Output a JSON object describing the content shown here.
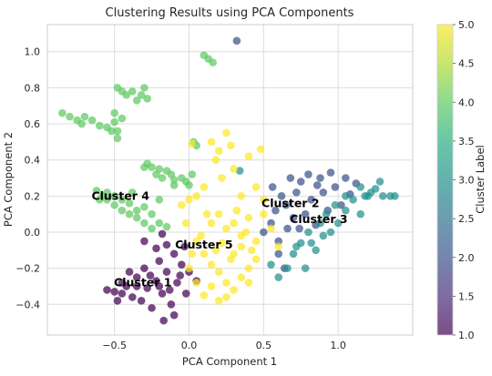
{
  "chart_data": {
    "type": "scatter",
    "title": "Clustering Results using PCA Components",
    "xlabel": "PCA Component 1",
    "ylabel": "PCA Component 2",
    "xlim": [
      -0.95,
      1.5
    ],
    "ylim": [
      -0.57,
      1.15
    ],
    "xticks": [
      "−0.5",
      "0.0",
      "0.5",
      "1.0"
    ],
    "xtick_values": [
      -0.5,
      0.0,
      0.5,
      1.0
    ],
    "yticks": [
      "−0.4",
      "−0.2",
      "0.0",
      "0.2",
      "0.4",
      "0.6",
      "0.8",
      "1.0"
    ],
    "ytick_values": [
      -0.4,
      -0.2,
      0.0,
      0.2,
      0.4,
      0.6,
      0.8,
      1.0
    ],
    "grid": true,
    "colormap": "viridis",
    "colorbar": {
      "label": "Cluster Label",
      "range": [
        1.0,
        5.0
      ],
      "ticks": [
        "1.0",
        "1.5",
        "2.0",
        "2.5",
        "3.0",
        "3.5",
        "4.0",
        "4.5",
        "5.0"
      ],
      "tick_values": [
        1.0,
        1.5,
        2.0,
        2.5,
        3.0,
        3.5,
        4.0,
        4.5,
        5.0
      ]
    },
    "clusters": [
      {
        "label": 1,
        "text": "Cluster 1",
        "color": "#440154",
        "center": [
          -0.31,
          -0.28
        ],
        "points": [
          [
            -0.55,
            -0.32
          ],
          [
            -0.5,
            -0.33
          ],
          [
            -0.45,
            -0.34
          ],
          [
            -0.42,
            -0.3
          ],
          [
            -0.38,
            -0.36
          ],
          [
            -0.35,
            -0.25
          ],
          [
            -0.32,
            -0.38
          ],
          [
            -0.3,
            -0.2
          ],
          [
            -0.28,
            -0.31
          ],
          [
            -0.25,
            -0.42
          ],
          [
            -0.22,
            -0.27
          ],
          [
            -0.2,
            -0.16
          ],
          [
            -0.18,
            -0.34
          ],
          [
            -0.15,
            -0.22
          ],
          [
            -0.12,
            -0.4
          ],
          [
            -0.1,
            -0.12
          ],
          [
            -0.08,
            -0.28
          ],
          [
            -0.05,
            -0.18
          ],
          [
            -0.03,
            -0.08
          ],
          [
            -0.02,
            -0.34
          ],
          [
            -0.1,
            -0.46
          ],
          [
            -0.17,
            -0.49
          ],
          [
            -0.4,
            -0.22
          ],
          [
            -0.45,
            -0.28
          ],
          [
            -0.48,
            -0.38
          ],
          [
            -0.3,
            -0.05
          ],
          [
            -0.18,
            -0.01
          ],
          [
            -0.15,
            -0.07
          ],
          [
            0.0,
            -0.22
          ],
          [
            -0.22,
            -0.09
          ],
          [
            0.05,
            -0.27
          ],
          [
            -0.35,
            -0.3
          ],
          [
            -0.26,
            -0.24
          ],
          [
            -0.2,
            -0.3
          ],
          [
            -0.13,
            -0.32
          ],
          [
            -0.06,
            -0.24
          ]
        ]
      },
      {
        "label": 2,
        "text": "Cluster 2",
        "color": "#3b528b",
        "center": [
          0.68,
          0.16
        ],
        "points": [
          [
            0.32,
            1.06
          ],
          [
            0.5,
            0.0
          ],
          [
            0.55,
            0.05
          ],
          [
            0.58,
            0.12
          ],
          [
            0.6,
            -0.05
          ],
          [
            0.62,
            0.2
          ],
          [
            0.65,
            0.15
          ],
          [
            0.68,
            0.3
          ],
          [
            0.7,
            0.08
          ],
          [
            0.72,
            0.22
          ],
          [
            0.75,
            0.28
          ],
          [
            0.78,
            0.1
          ],
          [
            0.8,
            0.32
          ],
          [
            0.82,
            0.18
          ],
          [
            0.85,
            0.04
          ],
          [
            0.88,
            0.3
          ],
          [
            0.9,
            0.22
          ],
          [
            0.93,
            0.12
          ],
          [
            0.95,
            0.33
          ],
          [
            0.98,
            0.25
          ],
          [
            1.02,
            0.15
          ],
          [
            1.05,
            0.3
          ],
          [
            1.08,
            0.21
          ],
          [
            1.12,
            0.27
          ],
          [
            0.6,
            -0.12
          ],
          [
            0.64,
            -0.2
          ],
          [
            0.74,
            0.02
          ],
          [
            0.86,
            0.26
          ],
          [
            0.56,
            0.25
          ],
          [
            0.66,
            0.02
          ]
        ]
      },
      {
        "label": 3,
        "text": "Cluster 3",
        "color": "#21918c",
        "center": [
          0.87,
          0.07
        ],
        "points": [
          [
            0.34,
            0.34
          ],
          [
            0.55,
            -0.18
          ],
          [
            0.6,
            -0.25
          ],
          [
            0.66,
            -0.2
          ],
          [
            0.7,
            -0.12
          ],
          [
            0.75,
            -0.06
          ],
          [
            0.78,
            -0.2
          ],
          [
            0.8,
            0.0
          ],
          [
            0.85,
            -0.1
          ],
          [
            0.88,
            0.05
          ],
          [
            0.92,
            0.1
          ],
          [
            0.95,
            0.0
          ],
          [
            0.98,
            0.15
          ],
          [
            1.0,
            0.05
          ],
          [
            1.05,
            0.12
          ],
          [
            1.1,
            0.18
          ],
          [
            1.15,
            0.25
          ],
          [
            1.2,
            0.2
          ],
          [
            1.25,
            0.24
          ],
          [
            1.3,
            0.2
          ],
          [
            1.35,
            0.2
          ],
          [
            1.38,
            0.2
          ],
          [
            1.15,
            0.1
          ],
          [
            1.05,
            0.2
          ],
          [
            0.72,
            -0.08
          ],
          [
            0.82,
            -0.06
          ],
          [
            0.9,
            -0.02
          ],
          [
            1.22,
            0.22
          ],
          [
            1.28,
            0.28
          ],
          [
            1.18,
            0.2
          ]
        ]
      },
      {
        "label": 4,
        "text": "Cluster 4",
        "color": "#5ec962",
        "center": [
          -0.46,
          0.2
        ],
        "points": [
          [
            -0.85,
            0.66
          ],
          [
            -0.8,
            0.64
          ],
          [
            -0.75,
            0.62
          ],
          [
            -0.72,
            0.6
          ],
          [
            -0.7,
            0.64
          ],
          [
            -0.65,
            0.62
          ],
          [
            -0.6,
            0.59
          ],
          [
            -0.55,
            0.58
          ],
          [
            -0.52,
            0.56
          ],
          [
            -0.5,
            0.61
          ],
          [
            -0.48,
            0.56
          ],
          [
            -0.5,
            0.66
          ],
          [
            -0.45,
            0.63
          ],
          [
            -0.48,
            0.52
          ],
          [
            -0.48,
            0.8
          ],
          [
            -0.45,
            0.78
          ],
          [
            -0.42,
            0.76
          ],
          [
            -0.38,
            0.78
          ],
          [
            -0.35,
            0.73
          ],
          [
            -0.32,
            0.76
          ],
          [
            -0.3,
            0.8
          ],
          [
            -0.28,
            0.74
          ],
          [
            -0.62,
            0.23
          ],
          [
            -0.58,
            0.2
          ],
          [
            -0.55,
            0.18
          ],
          [
            -0.5,
            0.15
          ],
          [
            -0.45,
            0.12
          ],
          [
            -0.4,
            0.1
          ],
          [
            -0.35,
            0.08
          ],
          [
            -0.3,
            0.05
          ],
          [
            -0.25,
            0.02
          ],
          [
            -0.2,
            0.05
          ],
          [
            -0.15,
            0.03
          ],
          [
            -0.55,
            0.22
          ],
          [
            -0.5,
            0.2
          ],
          [
            -0.45,
            0.18
          ],
          [
            -0.4,
            0.16
          ],
          [
            -0.35,
            0.12
          ],
          [
            -0.3,
            0.14
          ],
          [
            -0.25,
            0.1
          ],
          [
            -0.3,
            0.36
          ],
          [
            -0.28,
            0.38
          ],
          [
            -0.25,
            0.36
          ],
          [
            -0.22,
            0.32
          ],
          [
            -0.2,
            0.35
          ],
          [
            -0.18,
            0.3
          ],
          [
            -0.15,
            0.34
          ],
          [
            -0.12,
            0.32
          ],
          [
            -0.1,
            0.29
          ],
          [
            -0.05,
            0.3
          ],
          [
            -0.02,
            0.28
          ],
          [
            0.0,
            0.26
          ],
          [
            0.02,
            0.32
          ],
          [
            0.03,
            0.5
          ],
          [
            0.05,
            0.48
          ],
          [
            0.1,
            0.98
          ],
          [
            0.13,
            0.96
          ],
          [
            0.16,
            0.94
          ],
          [
            -0.2,
            0.18
          ],
          [
            -0.1,
            0.26
          ],
          [
            -0.38,
            0.22
          ],
          [
            -0.6,
            0.18
          ]
        ]
      },
      {
        "label": 5,
        "text": "Cluster 5",
        "color": "#fde725",
        "center": [
          0.1,
          -0.07
        ],
        "points": [
          [
            0.02,
            0.49
          ],
          [
            0.15,
            0.5
          ],
          [
            0.2,
            0.45
          ],
          [
            0.25,
            0.55
          ],
          [
            0.28,
            0.48
          ],
          [
            0.18,
            0.4
          ],
          [
            0.22,
            0.3
          ],
          [
            0.3,
            0.35
          ],
          [
            0.4,
            0.42
          ],
          [
            0.48,
            0.46
          ],
          [
            0.35,
            0.2
          ],
          [
            0.45,
            0.25
          ],
          [
            0.5,
            0.18
          ],
          [
            0.05,
            0.2
          ],
          [
            0.1,
            0.25
          ],
          [
            0.0,
            0.18
          ],
          [
            -0.05,
            0.15
          ],
          [
            0.15,
            0.05
          ],
          [
            0.2,
            0.1
          ],
          [
            0.25,
            0.02
          ],
          [
            0.3,
            0.05
          ],
          [
            0.35,
            -0.02
          ],
          [
            0.4,
            0.08
          ],
          [
            0.45,
            -0.05
          ],
          [
            0.5,
            0.1
          ],
          [
            0.55,
            0.02
          ],
          [
            0.6,
            -0.08
          ],
          [
            0.05,
            -0.05
          ],
          [
            0.1,
            -0.12
          ],
          [
            0.15,
            -0.18
          ],
          [
            0.2,
            -0.22
          ],
          [
            0.25,
            -0.28
          ],
          [
            0.3,
            -0.32
          ],
          [
            0.35,
            -0.25
          ],
          [
            0.4,
            -0.2
          ],
          [
            0.45,
            -0.15
          ],
          [
            0.0,
            -0.2
          ],
          [
            0.05,
            -0.28
          ],
          [
            0.1,
            -0.35
          ],
          [
            0.15,
            -0.3
          ],
          [
            0.2,
            -0.38
          ],
          [
            0.25,
            -0.36
          ],
          [
            0.3,
            -0.12
          ],
          [
            0.35,
            -0.08
          ],
          [
            0.4,
            -0.28
          ],
          [
            0.08,
            -0.02
          ],
          [
            0.18,
            -0.1
          ],
          [
            0.28,
            -0.15
          ],
          [
            0.38,
            0.0
          ],
          [
            0.12,
            0.1
          ],
          [
            -0.02,
            0.05
          ],
          [
            0.02,
            -0.12
          ],
          [
            0.22,
            -0.06
          ],
          [
            0.32,
            0.12
          ],
          [
            0.42,
            -0.1
          ]
        ]
      }
    ]
  }
}
